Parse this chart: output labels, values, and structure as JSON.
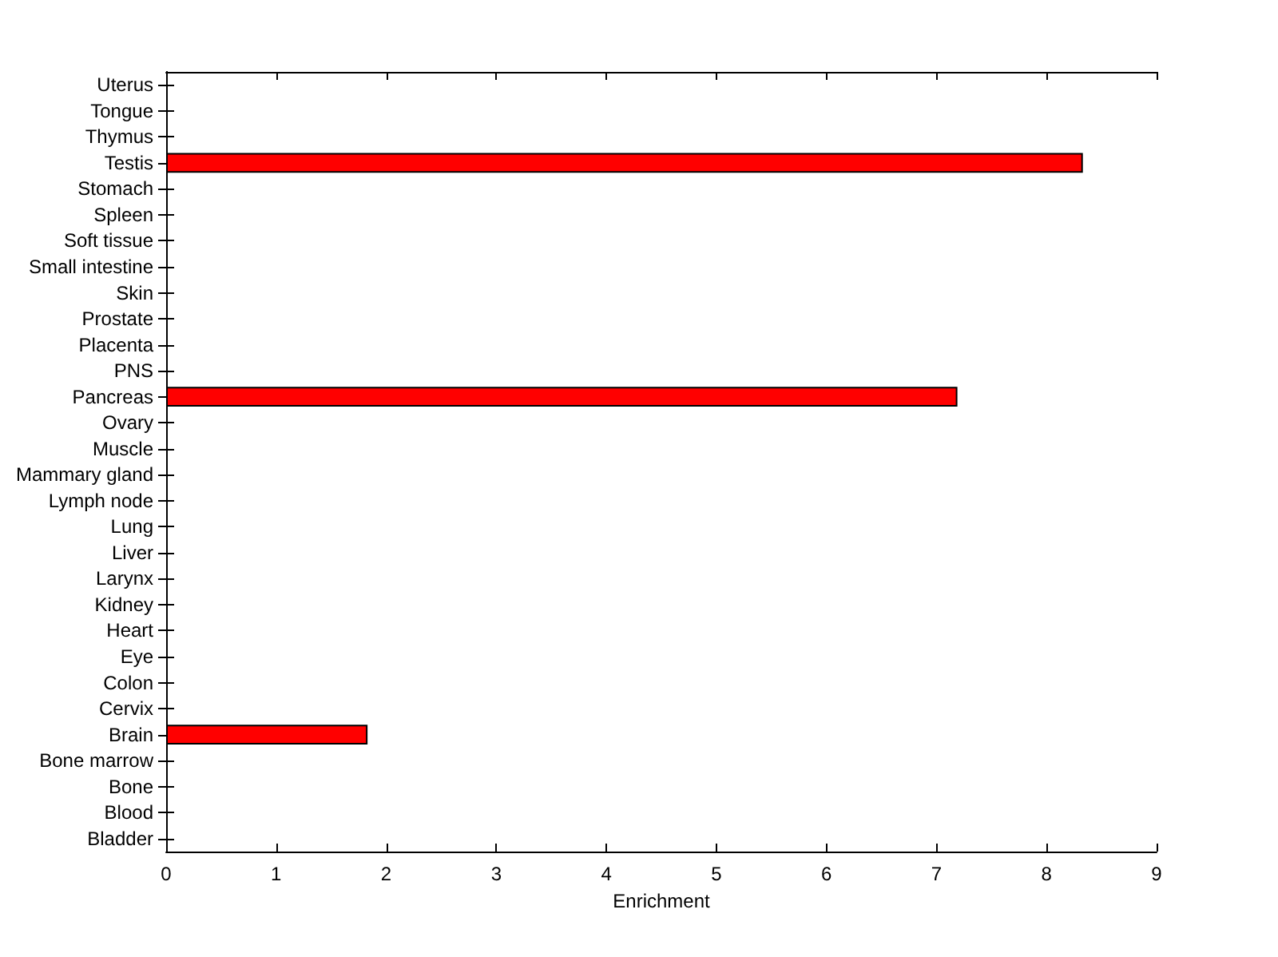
{
  "chart_data": {
    "type": "bar",
    "orientation": "horizontal",
    "xlabel": "Enrichment",
    "categories": [
      "Uterus",
      "Tongue",
      "Thymus",
      "Testis",
      "Stomach",
      "Spleen",
      "Soft tissue",
      "Small intestine",
      "Skin",
      "Prostate",
      "Placenta",
      "PNS",
      "Pancreas",
      "Ovary",
      "Muscle",
      "Mammary gland",
      "Lymph node",
      "Lung",
      "Liver",
      "Larynx",
      "Kidney",
      "Heart",
      "Eye",
      "Colon",
      "Cervix",
      "Brain",
      "Bone marrow",
      "Bone",
      "Blood",
      "Bladder"
    ],
    "values": [
      0,
      0,
      0,
      8.33,
      0,
      0,
      0,
      0,
      0,
      0,
      0,
      0,
      7.19,
      0,
      0,
      0,
      0,
      0,
      0,
      0,
      0,
      0,
      0,
      0,
      0,
      1.83,
      0,
      0,
      0,
      0
    ],
    "color": "#ff0000",
    "xlim": [
      0,
      9
    ],
    "xticks": [
      0,
      1,
      2,
      3,
      4,
      5,
      6,
      7,
      8,
      9
    ],
    "grid": false
  }
}
